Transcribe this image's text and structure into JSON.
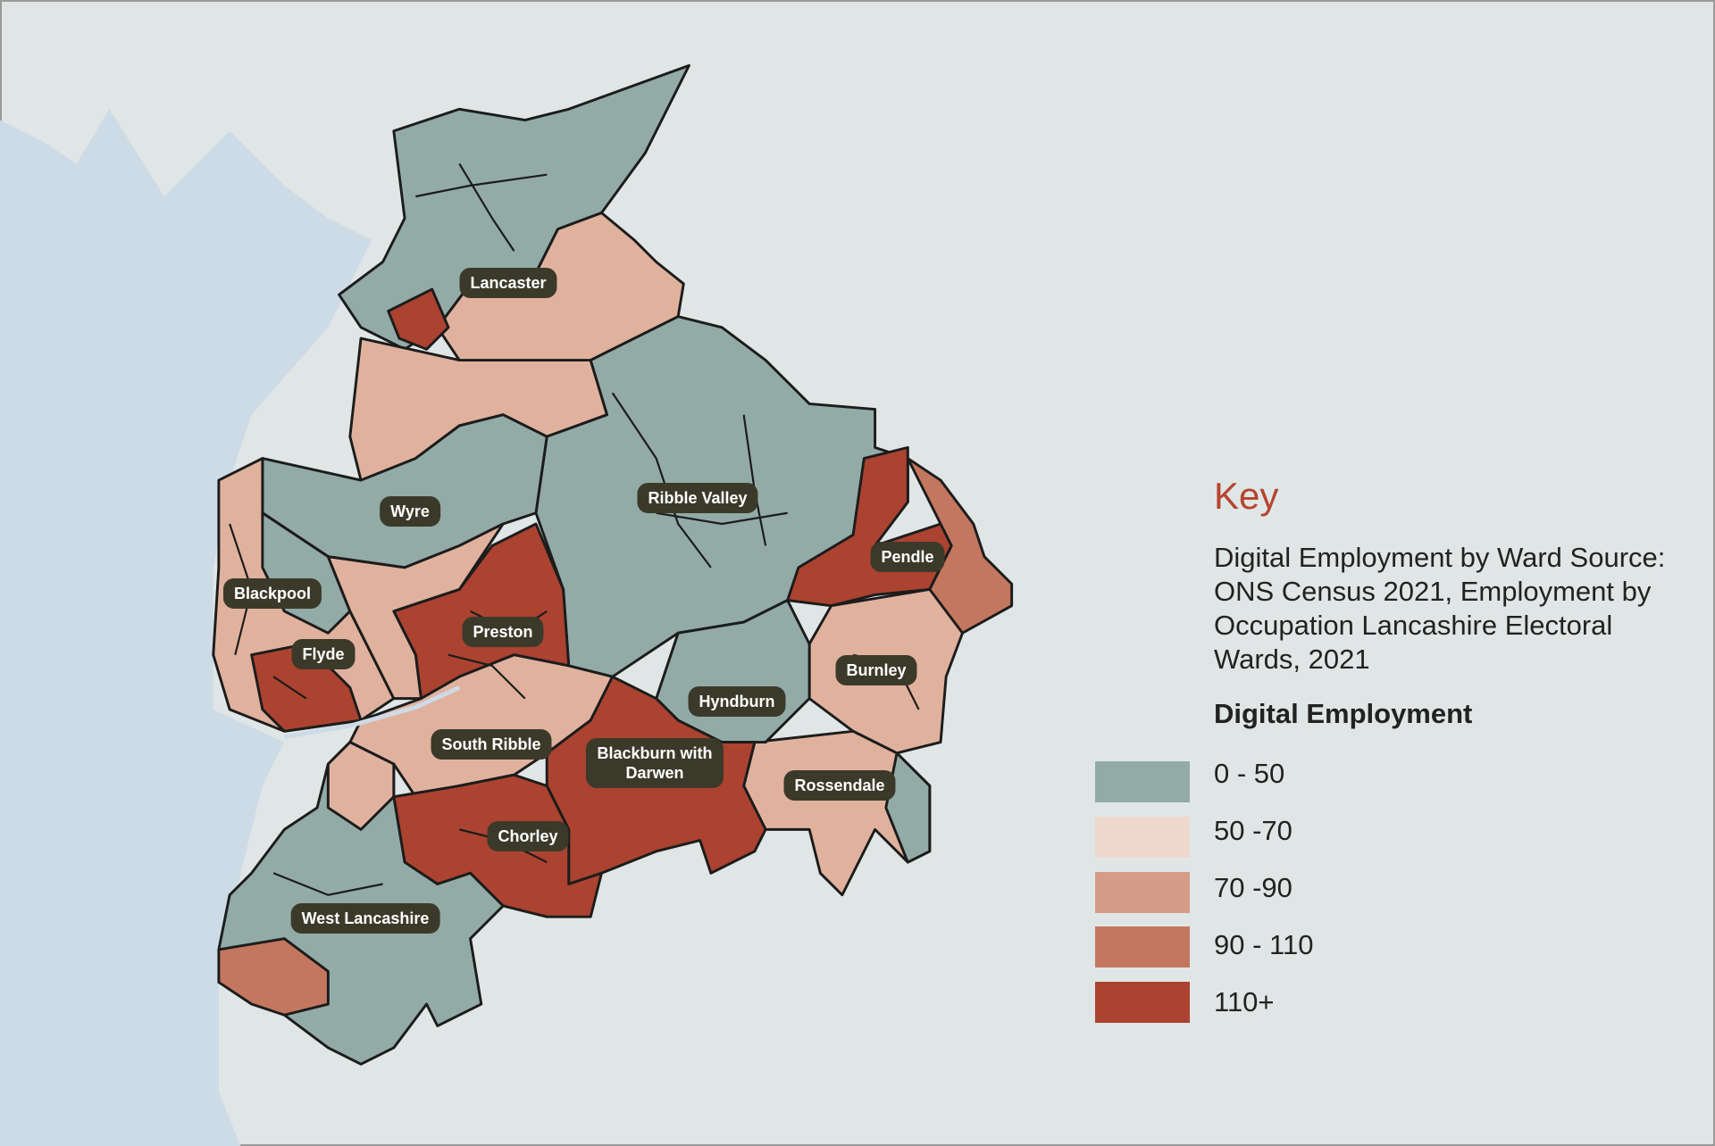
{
  "map": {
    "districts": {
      "lancaster": "Lancaster",
      "wyre": "Wyre",
      "ribble_valley": "Ribble Valley",
      "pendle": "Pendle",
      "blackpool": "Blackpool",
      "preston": "Preston",
      "fylde": "Flyde",
      "burnley": "Burnley",
      "hyndburn": "Hyndburn",
      "south_ribble": "South Ribble",
      "blackburn": "Blackburn with Darwen",
      "rossendale": "Rossendale",
      "chorley": "Chorley",
      "west_lancashire": "West Lancashire"
    },
    "colors": {
      "land": "#e0e6e6",
      "sea": "#cddbe6",
      "label_bg": "#3b3a2a"
    }
  },
  "legend": {
    "title": "Key",
    "description": "Digital Employment by Ward Source: ONS Census 2021, Employment by Occupation Lancashire Electoral Wards, 2021",
    "subtitle": "Digital Employment",
    "items": [
      {
        "label": "0 - 50",
        "color": "#93aba7"
      },
      {
        "label": "50 -70",
        "color": "#eed8ce"
      },
      {
        "label": "70 -90",
        "color": "#d49d87"
      },
      {
        "label": "90 - 110",
        "color": "#c4775f"
      },
      {
        "label": "110+",
        "color": "#ab4330"
      }
    ]
  }
}
